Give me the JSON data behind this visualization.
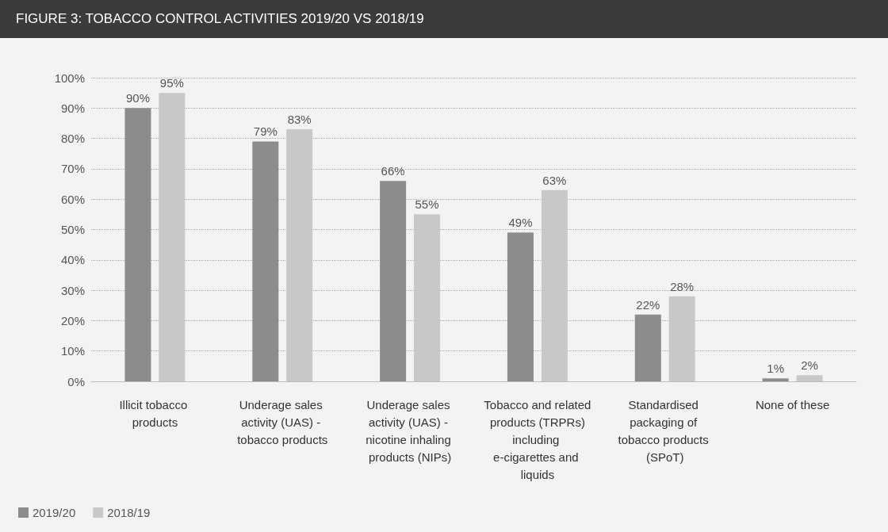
{
  "chart_data": {
    "type": "bar",
    "title": "FIGURE 3: TOBACCO CONTROL ACTIVITIES 2019/20 VS 2018/19",
    "categories": [
      "Illicit tobacco products",
      "Underage sales activity (UAS) - tobacco products",
      "Underage sales activity (UAS) - nicotine inhaling products (NIPs)",
      "Tobacco and related products (TRPRs) including e-cigarettes and liquids",
      "Standardised packaging of tobacco products (SPoT)",
      "None of these"
    ],
    "series": [
      {
        "name": "2019/20",
        "color": "#8c8c8c",
        "values": [
          90,
          79,
          66,
          49,
          22,
          1
        ],
        "value_labels": [
          "90%",
          "79%",
          "66%",
          "49%",
          "22%",
          "1%"
        ]
      },
      {
        "name": "2018/19",
        "color": "#c8c8c8",
        "values": [
          95,
          83,
          55,
          63,
          28,
          2
        ],
        "value_labels": [
          "95%",
          "83%",
          "55%",
          "63%",
          "28%",
          "2%"
        ]
      }
    ],
    "ylim": [
      0,
      100
    ],
    "yticks": [
      {
        "value": 0,
        "label": "0%"
      },
      {
        "value": 10,
        "label": "10%"
      },
      {
        "value": 20,
        "label": "20%"
      },
      {
        "value": 30,
        "label": "30%"
      },
      {
        "value": 40,
        "label": "40%"
      },
      {
        "value": 50,
        "label": "50%"
      },
      {
        "value": 60,
        "label": "60%"
      },
      {
        "value": 70,
        "label": "70%"
      },
      {
        "value": 80,
        "label": "80%"
      },
      {
        "value": 90,
        "label": "90%"
      },
      {
        "value": 100,
        "label": "100%"
      }
    ],
    "grid": "y",
    "legend": "bottom left"
  }
}
